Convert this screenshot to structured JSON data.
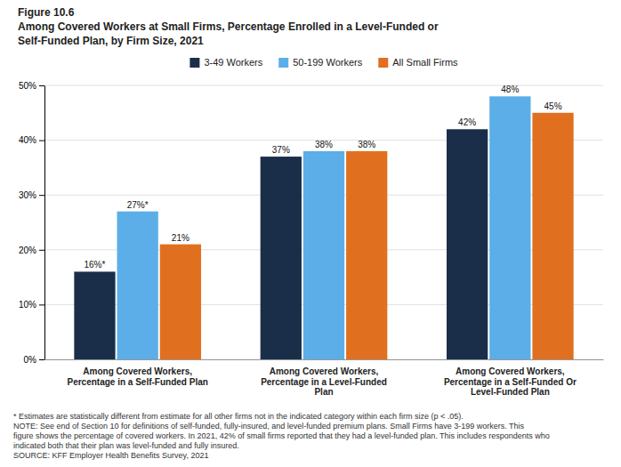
{
  "chart_data": {
    "type": "bar",
    "title": "Figure 10.6",
    "subtitle": [
      "Among Covered Workers at Small Firms, Percentage Enrolled in a Level-Funded or",
      "Self-Funded Plan, by Firm Size, 2021"
    ],
    "categories": [
      "Among Covered Workers,\nPercentage in a Self-Funded Plan",
      "Among Covered Workers,\nPercentage in a Level-Funded\nPlan",
      "Among Covered Workers,\nPercentage in a Self-Funded Or\nLevel-Funded Plan"
    ],
    "series": [
      {
        "name": "3-49 Workers",
        "color": "#1a2e4a",
        "values": [
          16,
          37,
          42
        ],
        "value_labels": [
          "16%*",
          "37%",
          "42%"
        ]
      },
      {
        "name": "50-199 Workers",
        "color": "#5baee8",
        "values": [
          27,
          38,
          48
        ],
        "value_labels": [
          "27%*",
          "38%",
          "48%"
        ]
      },
      {
        "name": "All Small Firms",
        "color": "#e07020",
        "values": [
          21,
          38,
          45
        ],
        "value_labels": [
          "21%",
          "38%",
          "45%"
        ]
      }
    ],
    "ylim": [
      0,
      50
    ],
    "yticks": [
      {
        "value": 0,
        "label": "0%"
      },
      {
        "value": 10,
        "label": "10%"
      },
      {
        "value": 20,
        "label": "20%"
      },
      {
        "value": 30,
        "label": "30%"
      },
      {
        "value": 40,
        "label": "40%"
      },
      {
        "value": 50,
        "label": "50%"
      }
    ],
    "grid": true,
    "legend": "top",
    "data_labels": true,
    "annotations": [
      "* Estimates are statistically different from estimate for all other firms not in the indicated category within each firm size (p < .05).",
      "NOTE: See end of Section 10 for definitions of self-funded, fully-insured, and level-funded premium plans. Small Firms have 3-199 workers. This",
      "figure shows the percentage of covered workers. In 2021, 42% of small firms reported that they had a level-funded plan. This includes respondents who",
      "indicated both that their plan was level-funded and fully insured.",
      "SOURCE: KFF Employer Health Benefits Survey, 2021"
    ]
  }
}
